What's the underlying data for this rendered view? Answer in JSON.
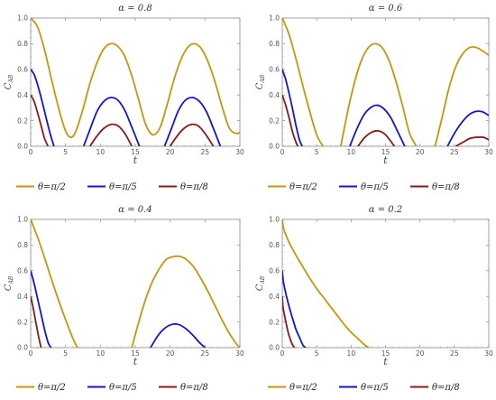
{
  "chart_data": [
    {
      "type": "line",
      "title": "α = 0.8",
      "xlabel": "t",
      "ylabel": "C",
      "ylabel_sub": "AB",
      "xlim": [
        0,
        30
      ],
      "ylim": [
        0,
        1
      ],
      "xticks": [
        "0",
        "5",
        "10",
        "15",
        "20",
        "25",
        "30"
      ],
      "yticks": [
        "0.0",
        "0.2",
        "0.4",
        "0.6",
        "0.8",
        "1.0"
      ],
      "legend": [
        "θ=π/2",
        "θ=π/5",
        "θ=π/8"
      ],
      "series": [
        {
          "name": "θ=π/2",
          "color": "#c8960c",
          "x": [
            0,
            1,
            2,
            3,
            4,
            5,
            5.8,
            6.5,
            7.5,
            8.5,
            9.5,
            10.5,
            11.5,
            12.5,
            13.5,
            14.5,
            15.5,
            16.5,
            17.5,
            18.5,
            19.5,
            20.5,
            21.5,
            22.5,
            23.5,
            24.5,
            25.5,
            26.5,
            27.5,
            28.5,
            29.5,
            30
          ],
          "y": [
            1.0,
            0.93,
            0.75,
            0.52,
            0.3,
            0.12,
            0.07,
            0.12,
            0.29,
            0.49,
            0.65,
            0.76,
            0.8,
            0.78,
            0.7,
            0.55,
            0.36,
            0.17,
            0.09,
            0.14,
            0.31,
            0.51,
            0.67,
            0.77,
            0.8,
            0.76,
            0.65,
            0.49,
            0.3,
            0.14,
            0.1,
            0.11
          ]
        },
        {
          "name": "θ=π/5",
          "color": "#1414d2",
          "segments": [
            {
              "x": [
                0,
                0.5,
                1,
                1.5,
                2,
                2.5,
                3,
                3.35
              ],
              "y": [
                0.6,
                0.56,
                0.48,
                0.38,
                0.27,
                0.16,
                0.06,
                0.0
              ]
            },
            {
              "x": [
                7.6,
                8.5,
                9.5,
                10.5,
                11.5,
                12.5,
                13.5,
                14.5,
                15.6
              ],
              "y": [
                0.0,
                0.13,
                0.27,
                0.35,
                0.38,
                0.36,
                0.28,
                0.15,
                0.0
              ]
            },
            {
              "x": [
                19.2,
                20.2,
                21.2,
                22.2,
                23.2,
                24.2,
                25.2,
                26.2,
                27.2
              ],
              "y": [
                0.0,
                0.14,
                0.28,
                0.36,
                0.38,
                0.35,
                0.27,
                0.14,
                0.0
              ]
            }
          ]
        },
        {
          "name": "θ=π/8",
          "color": "#8b1a1a",
          "segments": [
            {
              "x": [
                0,
                0.5,
                1,
                1.5,
                2,
                2.5
              ],
              "y": [
                0.4,
                0.35,
                0.26,
                0.16,
                0.06,
                0.0
              ]
            },
            {
              "x": [
                8.5,
                9.5,
                10.5,
                11.5,
                12.5,
                13.5,
                14.5
              ],
              "y": [
                0.0,
                0.08,
                0.14,
                0.17,
                0.16,
                0.1,
                0.0
              ]
            },
            {
              "x": [
                20.0,
                21.0,
                22.0,
                23.0,
                24.0,
                25.0,
                26.2
              ],
              "y": [
                0.0,
                0.08,
                0.14,
                0.17,
                0.16,
                0.1,
                0.0
              ]
            }
          ]
        }
      ]
    },
    {
      "type": "line",
      "title": "α = 0.6",
      "xlabel": "t",
      "ylabel": "C",
      "ylabel_sub": "AB",
      "xlim": [
        0,
        30
      ],
      "ylim": [
        0,
        1
      ],
      "xticks": [
        "0",
        "5",
        "10",
        "15",
        "20",
        "25",
        "30"
      ],
      "yticks": [
        "0.0",
        "0.2",
        "0.4",
        "0.6",
        "0.8",
        "1.0"
      ],
      "legend": [
        "θ=π/2",
        "θ=π/5",
        "θ=π/8"
      ],
      "series": [
        {
          "name": "θ=π/2",
          "color": "#c8960c",
          "segments": [
            {
              "x": [
                0,
                1,
                2,
                3,
                4,
                5,
                5.9
              ],
              "y": [
                1.0,
                0.87,
                0.68,
                0.47,
                0.27,
                0.09,
                0.0
              ]
            },
            {
              "x": [
                8.5,
                9.5,
                10.5,
                11.5,
                12.5,
                13.5,
                14.5,
                15.5,
                16.5,
                17.5,
                18.5,
                19.5
              ],
              "y": [
                0.0,
                0.27,
                0.5,
                0.67,
                0.77,
                0.8,
                0.77,
                0.67,
                0.51,
                0.31,
                0.1,
                0.0
              ]
            },
            {
              "x": [
                22.2,
                23.2,
                24.2,
                25.2,
                26.2,
                27.2,
                28.2,
                29.2,
                30
              ],
              "y": [
                0.0,
                0.22,
                0.45,
                0.62,
                0.72,
                0.77,
                0.77,
                0.74,
                0.71
              ]
            }
          ]
        },
        {
          "name": "θ=π/5",
          "color": "#1414d2",
          "segments": [
            {
              "x": [
                0,
                0.5,
                1,
                1.5,
                2,
                2.5,
                2.9
              ],
              "y": [
                0.6,
                0.52,
                0.41,
                0.29,
                0.16,
                0.05,
                0.0
              ]
            },
            {
              "x": [
                9.8,
                10.8,
                11.8,
                12.8,
                13.8,
                14.8,
                15.8,
                16.8,
                17.8
              ],
              "y": [
                0.0,
                0.13,
                0.24,
                0.3,
                0.32,
                0.29,
                0.22,
                0.11,
                0.0
              ]
            },
            {
              "x": [
                24.0,
                25.0,
                26.0,
                27.0,
                28.0,
                29.0,
                30
              ],
              "y": [
                0.0,
                0.1,
                0.18,
                0.24,
                0.27,
                0.27,
                0.24
              ]
            }
          ]
        },
        {
          "name": "θ=π/8",
          "color": "#8b1a1a",
          "segments": [
            {
              "x": [
                0,
                0.5,
                1,
                1.5,
                2,
                2.3
              ],
              "y": [
                0.4,
                0.32,
                0.22,
                0.11,
                0.03,
                0.0
              ]
            },
            {
              "x": [
                11.0,
                12.0,
                13.0,
                14.0,
                15.0,
                16.3
              ],
              "y": [
                0.0,
                0.07,
                0.11,
                0.12,
                0.09,
                0.0
              ]
            },
            {
              "x": [
                25.2,
                26.2,
                27.2,
                28.2,
                29.2,
                30
              ],
              "y": [
                0.0,
                0.03,
                0.06,
                0.07,
                0.07,
                0.05
              ]
            }
          ]
        }
      ]
    },
    {
      "type": "line",
      "title": "α = 0.4",
      "xlabel": "t",
      "ylabel": "C",
      "ylabel_sub": "AB",
      "xlim": [
        0,
        30
      ],
      "ylim": [
        0,
        1
      ],
      "xticks": [
        "0",
        "5",
        "10",
        "15",
        "20",
        "25",
        "30"
      ],
      "yticks": [
        "0.0",
        "0.2",
        "0.4",
        "0.6",
        "0.8",
        "1.0"
      ],
      "legend": [
        "θ=π/2",
        "θ=π/5",
        "θ=π/8"
      ],
      "series": [
        {
          "name": "θ=π/2",
          "color": "#c8960c",
          "segments": [
            {
              "x": [
                0,
                1,
                2,
                3,
                4,
                5,
                6,
                6.7
              ],
              "y": [
                1.0,
                0.86,
                0.7,
                0.53,
                0.37,
                0.22,
                0.08,
                0.0
              ]
            },
            {
              "x": [
                14.5,
                15.5,
                16.5,
                17.5,
                18.5,
                19.5,
                20.5,
                21.5,
                22.5,
                23.5,
                24.5,
                25.5,
                26.5,
                27.5,
                28.5,
                29.5,
                30
              ],
              "y": [
                0.0,
                0.2,
                0.38,
                0.52,
                0.62,
                0.69,
                0.71,
                0.71,
                0.68,
                0.62,
                0.53,
                0.43,
                0.32,
                0.21,
                0.11,
                0.03,
                0.0
              ]
            }
          ]
        },
        {
          "name": "θ=π/5",
          "color": "#1414d2",
          "segments": [
            {
              "x": [
                0,
                0.5,
                1,
                1.5,
                2,
                2.5,
                2.9
              ],
              "y": [
                0.6,
                0.5,
                0.38,
                0.26,
                0.14,
                0.04,
                0.0
              ]
            },
            {
              "x": [
                17.2,
                18.2,
                19.2,
                20.2,
                21.2,
                22.2,
                23.2,
                24.2,
                25.0
              ],
              "y": [
                0.0,
                0.09,
                0.15,
                0.18,
                0.18,
                0.15,
                0.1,
                0.04,
                0.0
              ]
            }
          ]
        },
        {
          "name": "θ=π/8",
          "color": "#8b1a1a",
          "segments": [
            {
              "x": [
                0,
                0.4,
                0.8,
                1.2,
                1.5
              ],
              "y": [
                0.4,
                0.3,
                0.18,
                0.07,
                0.0
              ]
            }
          ]
        }
      ]
    },
    {
      "type": "line",
      "title": "α = 0.2",
      "xlabel": "t",
      "ylabel": "C",
      "ylabel_sub": "AB",
      "xlim": [
        0,
        30
      ],
      "ylim": [
        0,
        1
      ],
      "xticks": [
        "0",
        "5",
        "10",
        "15",
        "20",
        "25",
        "30"
      ],
      "yticks": [
        "0.0",
        "0.2",
        "0.4",
        "0.6",
        "0.8",
        "1.0"
      ],
      "legend": [
        "θ=π/2",
        "θ=π/5",
        "θ=π/8"
      ],
      "series": [
        {
          "name": "θ=π/2",
          "color": "#c8960c",
          "segments": [
            {
              "x": [
                0,
                0.2,
                0.6,
                1,
                2,
                3,
                4,
                5,
                6,
                7,
                8,
                9,
                10,
                11,
                12,
                12.6
              ],
              "y": [
                1.0,
                0.93,
                0.87,
                0.82,
                0.72,
                0.63,
                0.54,
                0.46,
                0.39,
                0.32,
                0.25,
                0.18,
                0.12,
                0.07,
                0.02,
                0.0
              ]
            }
          ]
        },
        {
          "name": "θ=π/5",
          "color": "#1414d2",
          "segments": [
            {
              "x": [
                0,
                0.15,
                0.4,
                0.8,
                1.2,
                1.6,
                2.0,
                2.5,
                3.0,
                3.4
              ],
              "y": [
                0.6,
                0.52,
                0.45,
                0.36,
                0.28,
                0.21,
                0.14,
                0.08,
                0.02,
                0.0
              ]
            }
          ]
        },
        {
          "name": "θ=π/8",
          "color": "#8b1a1a",
          "segments": [
            {
              "x": [
                0,
                0.1,
                0.3,
                0.6,
                0.9,
                1.2,
                1.5,
                1.8
              ],
              "y": [
                0.4,
                0.32,
                0.26,
                0.18,
                0.11,
                0.06,
                0.02,
                0.0
              ]
            }
          ]
        }
      ]
    }
  ]
}
